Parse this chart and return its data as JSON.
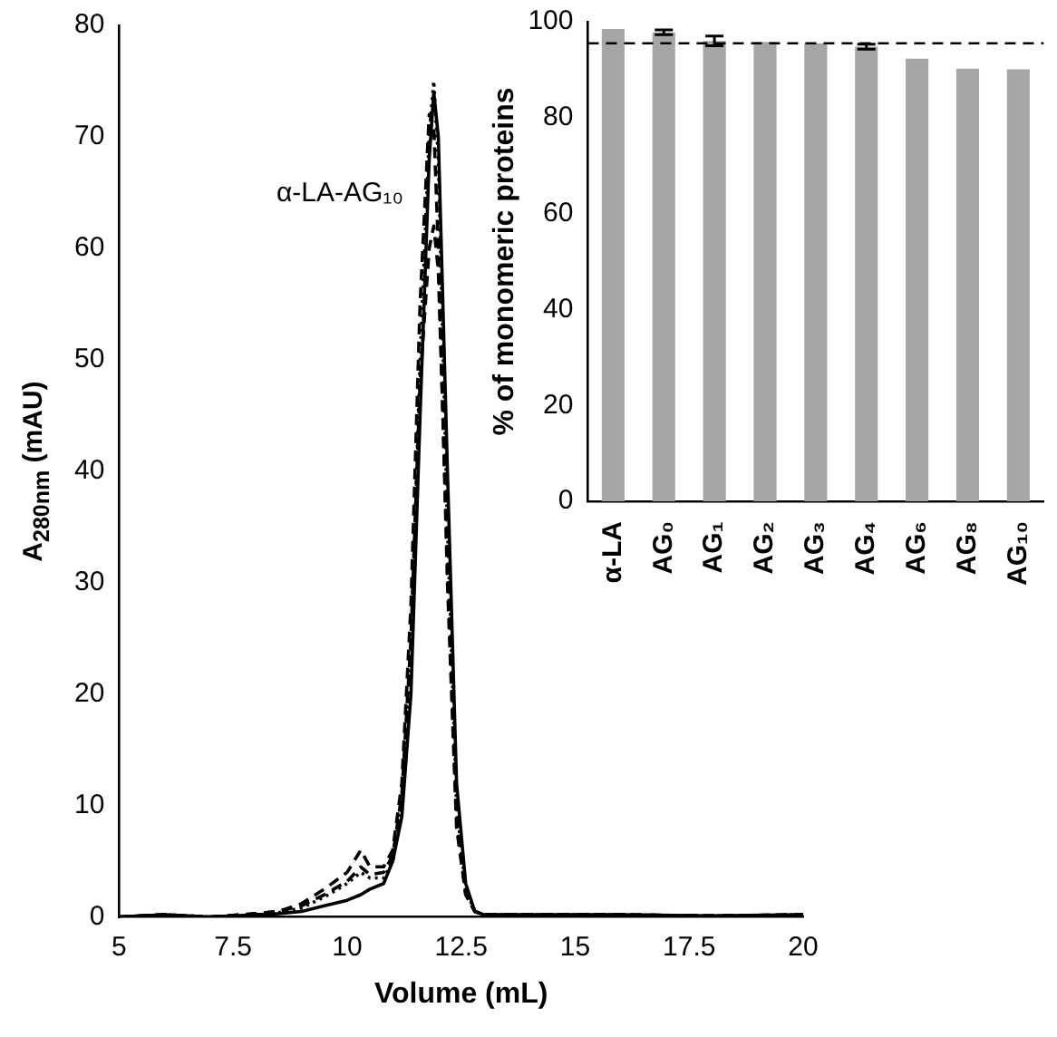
{
  "chart_data": [
    {
      "type": "line",
      "xlabel": "Volume (mL)",
      "ylabel": "A$_{280nm}$ (mAU)",
      "annotations": [
        "α-LA-AG₁₀"
      ],
      "x": [
        5,
        6,
        7,
        8,
        8.5,
        9,
        9.5,
        10,
        10.3,
        10.5,
        10.8,
        11,
        11.2,
        11.4,
        11.6,
        11.8,
        11.9,
        12,
        12.2,
        12.4,
        12.6,
        12.8,
        13,
        14,
        16,
        18,
        20
      ],
      "series": [
        {
          "color": "#000000",
          "line_style": "solid",
          "values": [
            0,
            0.2,
            0,
            0.2,
            0.3,
            0.5,
            1,
            1.5,
            2,
            2.5,
            3,
            5,
            9,
            20,
            45,
            68,
            74,
            70,
            40,
            12,
            3,
            0.5,
            0.2,
            0.2,
            0.2,
            0.1,
            0.2
          ]
        },
        {
          "color": "#000000",
          "line_style": "dashed",
          "values": [
            0,
            0.2,
            0,
            0.3,
            0.5,
            1.2,
            2.5,
            4,
            6,
            4.5,
            4.5,
            6,
            12,
            28,
            55,
            72,
            71,
            60,
            30,
            8,
            2,
            0.5,
            0.2,
            0.2,
            0.2,
            0.1,
            0.2
          ]
        },
        {
          "color": "#000000",
          "line_style": "dotted",
          "values": [
            0,
            0.2,
            0,
            0.2,
            0.4,
            0.8,
            1.8,
            3,
            4,
            3.5,
            3.5,
            5,
            10,
            24,
            50,
            70,
            75,
            68,
            35,
            10,
            2.5,
            0.5,
            0.2,
            0.2,
            0.2,
            0.1,
            0.2
          ]
        },
        {
          "color": "#000000",
          "line_style": "dashed",
          "values": [
            0,
            0.2,
            0,
            0.3,
            0.5,
            1,
            2,
            3.2,
            4.5,
            3.8,
            4,
            5.5,
            11,
            25,
            48,
            60,
            62,
            58,
            32,
            9,
            2,
            0.5,
            0.2,
            0.2,
            0.2,
            0.1,
            0.2
          ]
        }
      ],
      "xlim": [
        5,
        20
      ],
      "xticks": [
        5,
        7.5,
        10,
        12.5,
        15,
        17.5,
        20
      ],
      "ylim": [
        0,
        80
      ],
      "yticks": [
        0,
        10,
        20,
        30,
        40,
        50,
        60,
        70,
        80
      ]
    },
    {
      "type": "bar",
      "ylabel": "% of monomeric proteins",
      "categories": [
        "α-LA",
        "AG₀",
        "AG₁",
        "AG₂",
        "AG₃",
        "AG₄",
        "AG₆",
        "AG₈",
        "AG₁₀"
      ],
      "values": [
        98.5,
        97.8,
        96,
        95.8,
        95.5,
        94.8,
        92.3,
        90.2,
        90.1
      ],
      "errors": [
        null,
        0.5,
        1,
        null,
        null,
        0.5,
        null,
        null,
        null
      ],
      "color": "#a6a6a6",
      "ylim": [
        0,
        100
      ],
      "yticks": [
        0,
        20,
        40,
        60,
        80,
        100
      ],
      "ref_lines": [
        {
          "axis": "y",
          "value": 95.5,
          "line_style": "dashed",
          "color": "#000000"
        }
      ]
    }
  ]
}
